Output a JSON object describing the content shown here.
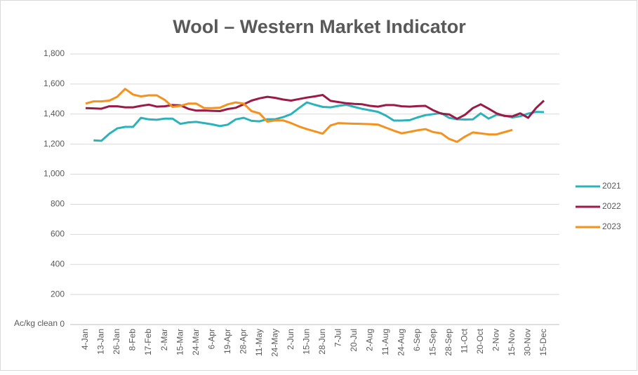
{
  "chart_data": {
    "type": "line",
    "title": "Wool – Western Market Indicator",
    "y_label": "Ac/kg clean",
    "categories": [
      "4-Jan",
      null,
      "13-Jan",
      null,
      "26-Jan",
      null,
      "8-Feb",
      null,
      "17-Feb",
      null,
      "2-Mar",
      null,
      "15-Mar",
      null,
      "24-Mar",
      null,
      "6-Apr",
      null,
      "19-Apr",
      null,
      "28-Apr",
      null,
      "11-May",
      null,
      "24-May",
      null,
      "2-Jun",
      null,
      "15-Jun",
      null,
      "28-Jun",
      null,
      "7-Jul",
      null,
      "20-Jul",
      null,
      "2-Aug",
      null,
      "11-Aug",
      null,
      "24-Aug",
      null,
      "6-Sep",
      null,
      "15-Sep",
      null,
      "28-Sep",
      null,
      "11-Oct",
      null,
      "20-Oct",
      null,
      "2-Nov",
      null,
      "15-Nov",
      null,
      "30-Nov",
      null,
      "15-Dec"
    ],
    "series": [
      {
        "name": "2021",
        "color": "#2bb3bd",
        "values": [
          null,
          1225,
          1222,
          1270,
          1305,
          1315,
          1315,
          1375,
          1365,
          1362,
          1370,
          1370,
          1335,
          1345,
          1348,
          1340,
          1332,
          1320,
          1330,
          1365,
          1375,
          1355,
          1352,
          1366,
          1366,
          1380,
          1400,
          1440,
          1478,
          1462,
          1448,
          1445,
          1455,
          1462,
          1448,
          1435,
          1425,
          1415,
          1390,
          1357,
          1357,
          1360,
          1378,
          1393,
          1400,
          1407,
          1375,
          1366,
          1364,
          1365,
          1405,
          1370,
          1395,
          1390,
          1378,
          1386,
          1403,
          1415,
          1413
        ]
      },
      {
        "name": "2022",
        "color": "#9b1b46",
        "values": [
          1440,
          1438,
          1436,
          1452,
          1452,
          1445,
          1445,
          1455,
          1463,
          1450,
          1452,
          1460,
          1458,
          1435,
          1423,
          1424,
          1422,
          1420,
          1434,
          1442,
          1465,
          1490,
          1505,
          1515,
          1508,
          1497,
          1490,
          1500,
          1510,
          1518,
          1527,
          1488,
          1480,
          1472,
          1468,
          1465,
          1455,
          1450,
          1460,
          1460,
          1452,
          1450,
          1453,
          1455,
          1425,
          1403,
          1398,
          1368,
          1395,
          1440,
          1465,
          1436,
          1405,
          1388,
          1385,
          1405,
          1375,
          1440,
          1490
        ]
      },
      {
        "name": "2023",
        "color": "#f5921e",
        "values": [
          1470,
          1485,
          1485,
          1490,
          1515,
          1568,
          1530,
          1518,
          1525,
          1525,
          1495,
          1448,
          1455,
          1470,
          1470,
          1440,
          1440,
          1443,
          1465,
          1478,
          1470,
          1420,
          1405,
          1350,
          1358,
          1358,
          1340,
          1318,
          1300,
          1285,
          1270,
          1325,
          1340,
          1338,
          1336,
          1335,
          1333,
          1330,
          1310,
          1290,
          1272,
          1282,
          1292,
          1300,
          1280,
          1272,
          1235,
          1215,
          1250,
          1278,
          1272,
          1265,
          1265,
          1280,
          1295,
          null,
          null,
          null,
          null
        ]
      }
    ],
    "ylim": [
      0,
      1800
    ],
    "yticks": [
      0,
      200,
      400,
      600,
      800,
      {
        "value": 1000,
        "label": "1,000"
      },
      {
        "value": 1200,
        "label": "1,200"
      },
      {
        "value": 1400,
        "label": "1,400"
      },
      {
        "value": 1600,
        "label": "1,600"
      },
      {
        "value": 1800,
        "label": "1,800"
      }
    ],
    "grid": true,
    "legend": "right"
  }
}
